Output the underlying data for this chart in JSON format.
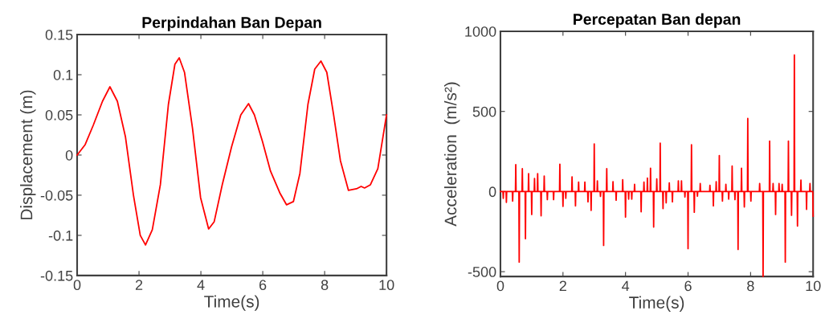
{
  "chart_data": [
    {
      "type": "line",
      "title": "Perpindahan Ban Depan",
      "xlabel": "Time(s)",
      "ylabel": "Displacement (m)",
      "xlim": [
        0,
        10
      ],
      "ylim": [
        -0.15,
        0.15
      ],
      "xticks": [
        0,
        2,
        4,
        6,
        8,
        10
      ],
      "yticks": [
        -0.15,
        -0.1,
        -0.05,
        0,
        0.05,
        0.1,
        0.15
      ],
      "grid": false,
      "marker": "none",
      "line_style": "solid",
      "series": [
        {
          "color": "#ff0000",
          "x": [
            0,
            0.26,
            0.52,
            0.82,
            1.06,
            1.3,
            1.56,
            1.82,
            2.04,
            2.21,
            2.43,
            2.69,
            2.95,
            3.16,
            3.3,
            3.47,
            3.73,
            3.99,
            4.25,
            4.43,
            4.69,
            4.99,
            5.29,
            5.54,
            5.73,
            5.99,
            6.25,
            6.55,
            6.77,
            6.99,
            7.2,
            7.46,
            7.68,
            7.88,
            8.07,
            8.29,
            8.51,
            8.77,
            9.03,
            9.18,
            9.29,
            9.48,
            9.72,
            10
          ],
          "values": [
            0,
            0.013,
            0.037,
            0.067,
            0.085,
            0.067,
            0.023,
            -0.05,
            -0.1,
            -0.112,
            -0.093,
            -0.037,
            0.063,
            0.113,
            0.121,
            0.103,
            0.033,
            -0.053,
            -0.092,
            -0.083,
            -0.037,
            0.01,
            0.05,
            0.064,
            0.05,
            0.017,
            -0.02,
            -0.047,
            -0.062,
            -0.058,
            -0.023,
            0.063,
            0.107,
            0.117,
            0.103,
            0.05,
            -0.007,
            -0.044,
            -0.042,
            -0.039,
            -0.041,
            -0.037,
            -0.017,
            0.05
          ]
        }
      ]
    },
    {
      "type": "line",
      "title": "Percepatan Ban depan",
      "xlabel": "Time(s)",
      "ylabel": "Acceleration  (m/s²)",
      "xlim": [
        0,
        10
      ],
      "ylim": [
        -530,
        1000
      ],
      "xticks": [
        0,
        2,
        4,
        6,
        8,
        10
      ],
      "yticks": [
        -500,
        0,
        500,
        1000
      ],
      "grid": false,
      "marker": "none",
      "line_style": "solid",
      "series": [
        {
          "color": "#ff0000",
          "x": [
            0,
            0.08,
            0.09,
            0.1,
            0.18,
            0.19,
            0.2,
            0.38,
            0.39,
            0.4,
            0.48,
            0.49,
            0.5,
            0.59,
            0.6,
            0.61,
            0.69,
            0.7,
            0.71,
            0.79,
            0.8,
            0.81,
            0.89,
            0.9,
            0.91,
            0.99,
            1.0,
            1.01,
            1.08,
            1.09,
            1.1,
            1.18,
            1.19,
            1.2,
            1.29,
            1.3,
            1.31,
            1.39,
            1.4,
            1.41,
            1.49,
            1.5,
            1.51,
            1.69,
            1.7,
            1.71,
            1.89,
            1.9,
            1.91,
            1.99,
            2.0,
            2.01,
            2.08,
            2.09,
            2.1,
            2.28,
            2.29,
            2.3,
            2.39,
            2.4,
            2.41,
            2.49,
            2.5,
            2.51,
            2.69,
            2.7,
            2.71,
            2.79,
            2.8,
            2.81,
            2.89,
            2.9,
            2.91,
            2.99,
            3.0,
            3.01,
            3.09,
            3.1,
            3.11,
            3.19,
            3.2,
            3.21,
            3.29,
            3.3,
            3.31,
            3.39,
            3.4,
            3.41,
            3.59,
            3.6,
            3.61,
            3.69,
            3.7,
            3.71,
            3.9,
            3.91,
            3.92,
            3.99,
            4.0,
            4.01,
            4.09,
            4.1,
            4.11,
            4.19,
            4.2,
            4.21,
            4.28,
            4.29,
            4.3,
            4.49,
            4.5,
            4.51,
            4.58,
            4.59,
            4.6,
            4.69,
            4.7,
            4.71,
            4.79,
            4.8,
            4.81,
            4.89,
            4.9,
            4.91,
            4.99,
            5.0,
            5.01,
            5.1,
            5.11,
            5.12,
            5.19,
            5.2,
            5.21,
            5.29,
            5.3,
            5.31,
            5.39,
            5.4,
            5.41,
            5.49,
            5.5,
            5.51,
            5.68,
            5.69,
            5.7,
            5.78,
            5.79,
            5.8,
            5.89,
            5.9,
            5.91,
            5.99,
            6.0,
            6.01,
            6.1,
            6.11,
            6.12,
            6.19,
            6.2,
            6.21,
            6.29,
            6.3,
            6.31,
            6.38,
            6.39,
            6.4,
            6.69,
            6.7,
            6.71,
            6.8,
            6.81,
            6.82,
            6.89,
            6.9,
            6.91,
            6.99,
            7.0,
            7.01,
            7.09,
            7.1,
            7.11,
            7.2,
            7.21,
            7.22,
            7.29,
            7.3,
            7.31,
            7.4,
            7.41,
            7.42,
            7.49,
            7.5,
            7.51,
            7.59,
            7.6,
            7.61,
            7.7,
            7.71,
            7.72,
            7.79,
            7.8,
            7.81,
            7.9,
            7.91,
            7.92,
            8.0,
            8.01,
            8.02,
            8.28,
            8.29,
            8.3,
            8.39,
            8.4,
            8.41,
            8.6,
            8.61,
            8.62,
            8.71,
            8.72,
            8.73,
            8.79,
            8.8,
            8.81,
            8.9,
            8.91,
            8.92,
            9.0,
            9.01,
            9.02,
            9.1,
            9.11,
            9.12,
            9.2,
            9.21,
            9.22,
            9.3,
            9.31,
            9.32,
            9.39,
            9.4,
            9.41,
            9.49,
            9.5,
            9.51,
            9.6,
            9.61,
            9.62,
            9.78,
            9.79,
            9.8,
            9.89,
            9.9,
            9.91,
            9.99,
            10
          ],
          "values": [
            0,
            0,
            -42,
            0,
            0,
            -67,
            0,
            0,
            -59,
            0,
            0,
            168,
            0,
            0,
            -440,
            0,
            0,
            143,
            0,
            0,
            -294,
            0,
            0,
            112,
            0,
            0,
            -143,
            0,
            0,
            81,
            0,
            0,
            112,
            0,
            0,
            -151,
            0,
            0,
            97,
            0,
            0,
            -50,
            0,
            0,
            -50,
            0,
            0,
            171,
            0,
            0,
            -92,
            0,
            0,
            -42,
            0,
            0,
            92,
            0,
            0,
            -89,
            0,
            0,
            59,
            0,
            0,
            59,
            0,
            0,
            -64,
            0,
            0,
            -117,
            0,
            0,
            297,
            0,
            0,
            67,
            0,
            0,
            -30,
            0,
            0,
            -336,
            0,
            0,
            143,
            0,
            0,
            62,
            0,
            0,
            -54,
            0,
            0,
            74,
            0,
            0,
            -159,
            0,
            0,
            -47,
            0,
            0,
            -47,
            0,
            0,
            45,
            0,
            0,
            -126,
            0,
            0,
            59,
            0,
            0,
            84,
            0,
            0,
            146,
            0,
            0,
            -221,
            0,
            0,
            79,
            0,
            0,
            302,
            0,
            0,
            -106,
            0,
            0,
            -70,
            0,
            0,
            54,
            0,
            0,
            -64,
            0,
            0,
            67,
            0,
            0,
            67,
            0,
            0,
            -34,
            0,
            0,
            -356,
            0,
            0,
            292,
            0,
            0,
            -129,
            0,
            0,
            -29,
            0,
            0,
            50,
            0,
            0,
            39,
            0,
            0,
            -89,
            0,
            0,
            62,
            0,
            0,
            225,
            0,
            0,
            -59,
            0,
            0,
            45,
            0,
            0,
            -47,
            0,
            0,
            159,
            0,
            0,
            -50,
            0,
            0,
            -361,
            0,
            0,
            146,
            0,
            0,
            -96,
            0,
            0,
            456,
            0,
            0,
            -59,
            0,
            0,
            50,
            0,
            0,
            -530,
            0,
            0,
            315,
            0,
            0,
            50,
            0,
            0,
            -143,
            0,
            0,
            50,
            0,
            0,
            45,
            0,
            0,
            -440,
            0,
            0,
            315,
            0,
            0,
            -148,
            0,
            0,
            852,
            0,
            0,
            -215,
            0,
            0,
            72,
            0,
            0,
            -111,
            0,
            0,
            50,
            0,
            0,
            -154
          ]
        }
      ]
    }
  ]
}
